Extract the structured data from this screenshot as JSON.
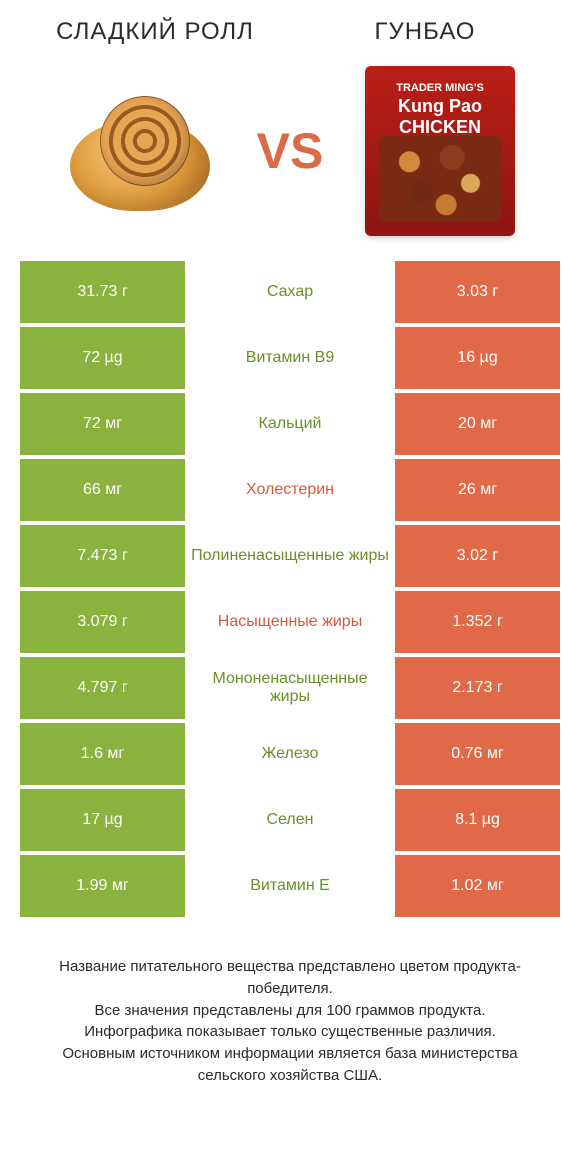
{
  "titles": {
    "left": "СЛАДКИЙ РОЛЛ",
    "right": "ГУНБАО"
  },
  "vs": "VS",
  "bag": {
    "top": "TRADER MING'S",
    "name": "Kung Pao CHICKEN"
  },
  "colors": {
    "green": "#8ab23f",
    "orange": "#e06a48",
    "txt_green": "#6a8f27",
    "txt_orange": "#d45a3a",
    "bg": "#ffffff"
  },
  "rows": [
    {
      "left": "31.73 г",
      "label": "Сахар",
      "right": "3.03 г",
      "winner": "left"
    },
    {
      "left": "72 µg",
      "label": "Витамин B9",
      "right": "16 µg",
      "winner": "left"
    },
    {
      "left": "72 мг",
      "label": "Кальций",
      "right": "20 мг",
      "winner": "left"
    },
    {
      "left": "66 мг",
      "label": "Холестерин",
      "right": "26 мг",
      "winner": "right"
    },
    {
      "left": "7.473 г",
      "label": "Полиненасыщенные жиры",
      "right": "3.02 г",
      "winner": "left"
    },
    {
      "left": "3.079 г",
      "label": "Насыщенные жиры",
      "right": "1.352 г",
      "winner": "right"
    },
    {
      "left": "4.797 г",
      "label": "Мононенасыщенные жиры",
      "right": "2.173 г",
      "winner": "left"
    },
    {
      "left": "1.6 мг",
      "label": "Железо",
      "right": "0.76 мг",
      "winner": "left"
    },
    {
      "left": "17 µg",
      "label": "Селен",
      "right": "8.1 µg",
      "winner": "left"
    },
    {
      "left": "1.99 мг",
      "label": "Витамин E",
      "right": "1.02 мг",
      "winner": "left"
    }
  ],
  "footer": [
    "Название питательного вещества представлено цветом продукта-победителя.",
    "Все значения представлены для 100 граммов продукта.",
    "Инфографика показывает только существенные различия.",
    "Основным источником информации является база министерства сельского хозяйства США."
  ]
}
